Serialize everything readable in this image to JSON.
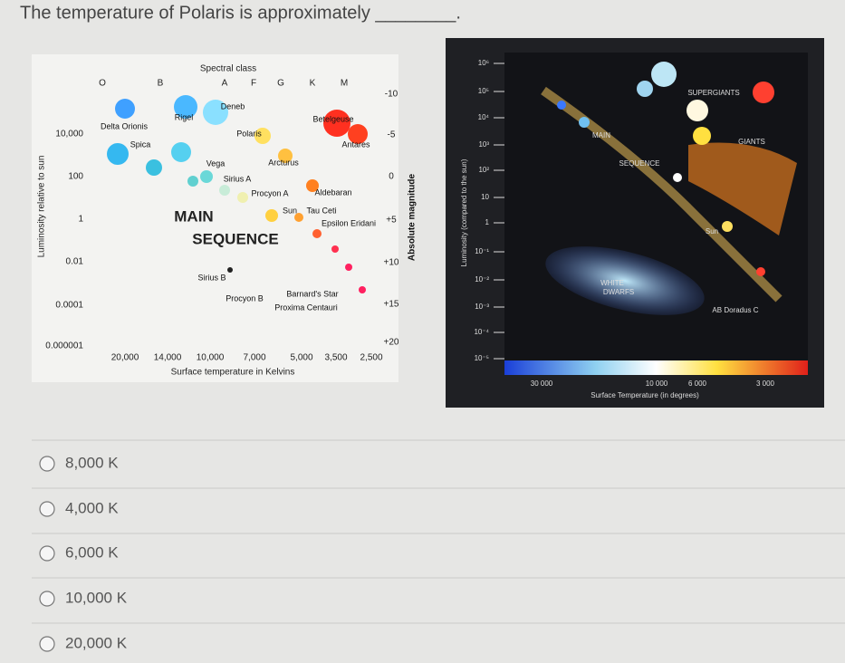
{
  "question": "The temperature of Polaris is approximately ________.",
  "figures": [
    {
      "title": "Spectral class",
      "spectral_classes": [
        "O",
        "B",
        "A",
        "F",
        "G",
        "K",
        "M"
      ],
      "y_labels": [
        "10,000",
        "100",
        "1",
        "0.01",
        "0.0001",
        "0.000001"
      ],
      "magnitudes": [
        "-10",
        "-5",
        "0",
        "+5",
        "+10",
        "+15",
        "+20"
      ],
      "x_labels": [
        "20,000",
        "14,000",
        "10,000",
        "7,000",
        "5,000",
        "3,500",
        "2,500"
      ],
      "x_title": "Surface temperature in Kelvins",
      "y_title": "Luminosity relative to sun",
      "y2_title": "Absolute magnitude",
      "region_labels": [
        "MAIN",
        "SEQUENCE"
      ],
      "star_labels": [
        "Deneb",
        "Rigel",
        "Delta Orionis",
        "Polaris",
        "Betelgeuse",
        "Spica",
        "Antares",
        "Vega",
        "Arcturus",
        "Sirius A",
        "Procyon A",
        "Aldebaran",
        "Sun",
        "Tau Ceti",
        "Epsilon Eridani",
        "Sirius B",
        "Procyon B",
        "Barnard's Star",
        "Proxima Centauri"
      ]
    },
    {
      "y_labels": [
        "10⁶",
        "10⁵",
        "10⁴",
        "10³",
        "10²",
        "10",
        "1",
        "10⁻¹",
        "10⁻²",
        "10⁻³",
        "10⁻⁴",
        "10⁻⁵"
      ],
      "x_labels": [
        "30 000",
        "10 000",
        "6 000",
        "3 000"
      ],
      "x_title": "Surface Temperature (in degrees)",
      "y_title": "Luminosity (compared to the sun)",
      "region_labels": [
        "SUPERGIANTS",
        "GIANTS",
        "MAIN",
        "SEQUENCE",
        "Sun",
        "WHITE",
        "DWARFS",
        "AB Doradus C"
      ]
    }
  ],
  "options": [
    "8,000 K",
    "4,000 K",
    "6,000 K",
    "10,000 K",
    "20,000 K"
  ]
}
